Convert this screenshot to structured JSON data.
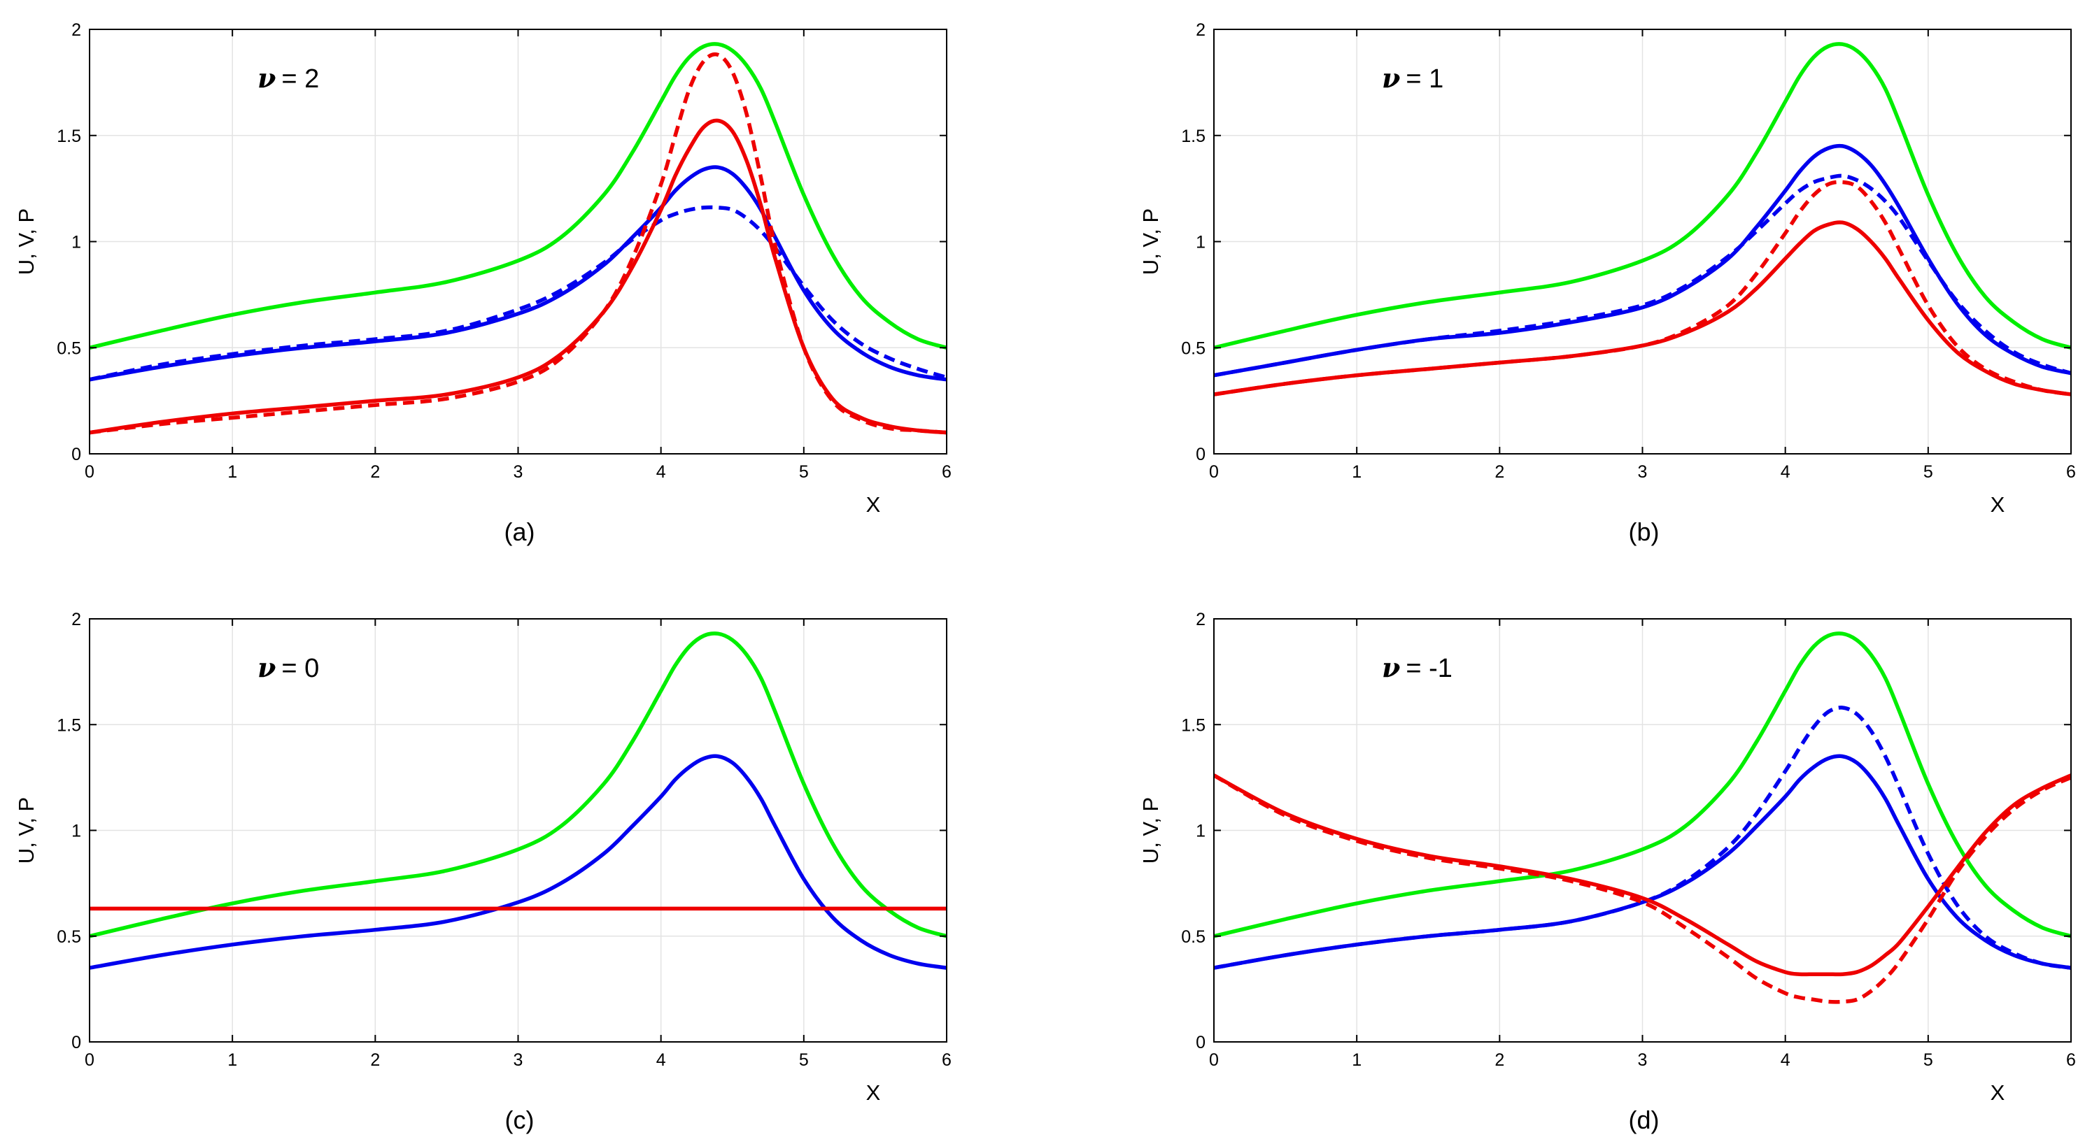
{
  "chart_data": [
    {
      "type": "line",
      "id": "a",
      "caption": "(a)",
      "annotation_symbol": "ν",
      "annotation_value": "= 2",
      "xlabel": "X",
      "ylabel": "U, V, P",
      "xlim": [
        0,
        6
      ],
      "ylim": [
        0,
        2
      ],
      "xticks": [
        "0",
        "1",
        "2",
        "3",
        "4",
        "5",
        "6"
      ],
      "yticks": [
        "0",
        "0.5",
        "1",
        "1.5",
        "2"
      ],
      "grid": true,
      "x": [
        0,
        0.5,
        1,
        1.5,
        2,
        2.5,
        3,
        3.3,
        3.6,
        3.8,
        4,
        4.1,
        4.2,
        4.3,
        4.4,
        4.5,
        4.6,
        4.7,
        4.8,
        5,
        5.2,
        5.4,
        5.6,
        5.8,
        6
      ],
      "series": [
        {
          "name": "green solid",
          "color": "#00ee00",
          "dash": false,
          "values": [
            0.5,
            0.58,
            0.655,
            0.715,
            0.76,
            0.81,
            0.91,
            1.02,
            1.22,
            1.42,
            1.66,
            1.78,
            1.87,
            1.92,
            1.93,
            1.9,
            1.83,
            1.72,
            1.56,
            1.22,
            0.94,
            0.74,
            0.62,
            0.54,
            0.5
          ]
        },
        {
          "name": "blue solid",
          "color": "#0000ee",
          "dash": false,
          "values": [
            0.35,
            0.41,
            0.46,
            0.5,
            0.53,
            0.57,
            0.66,
            0.75,
            0.89,
            1.02,
            1.16,
            1.24,
            1.3,
            1.34,
            1.35,
            1.32,
            1.25,
            1.15,
            1.02,
            0.77,
            0.59,
            0.48,
            0.41,
            0.37,
            0.35
          ]
        },
        {
          "name": "blue dashed",
          "color": "#0000ee",
          "dash": true,
          "values": [
            0.35,
            0.42,
            0.47,
            0.51,
            0.54,
            0.58,
            0.68,
            0.77,
            0.9,
            1.01,
            1.1,
            1.13,
            1.15,
            1.16,
            1.16,
            1.15,
            1.11,
            1.05,
            0.97,
            0.79,
            0.63,
            0.52,
            0.45,
            0.4,
            0.36
          ]
        },
        {
          "name": "red solid",
          "color": "#ee0000",
          "dash": false,
          "values": [
            0.1,
            0.15,
            0.19,
            0.22,
            0.25,
            0.28,
            0.36,
            0.47,
            0.67,
            0.88,
            1.15,
            1.31,
            1.44,
            1.54,
            1.57,
            1.52,
            1.38,
            1.17,
            0.92,
            0.5,
            0.26,
            0.17,
            0.13,
            0.11,
            0.1
          ]
        },
        {
          "name": "red dashed",
          "color": "#ee0000",
          "dash": true,
          "values": [
            0.1,
            0.14,
            0.17,
            0.2,
            0.23,
            0.26,
            0.34,
            0.45,
            0.67,
            0.92,
            1.27,
            1.5,
            1.72,
            1.85,
            1.88,
            1.8,
            1.6,
            1.3,
            0.98,
            0.5,
            0.25,
            0.16,
            0.12,
            0.11,
            0.1
          ]
        }
      ]
    },
    {
      "type": "line",
      "id": "b",
      "caption": "(b)",
      "annotation_symbol": "ν",
      "annotation_value": "= 1",
      "xlabel": "X",
      "ylabel": "U, V, P",
      "xlim": [
        0,
        6
      ],
      "ylim": [
        0,
        2
      ],
      "xticks": [
        "0",
        "1",
        "2",
        "3",
        "4",
        "5",
        "6"
      ],
      "yticks": [
        "0",
        "0.5",
        "1",
        "1.5",
        "2"
      ],
      "grid": true,
      "x": [
        0,
        0.5,
        1,
        1.5,
        2,
        2.5,
        3,
        3.3,
        3.6,
        3.8,
        4,
        4.1,
        4.2,
        4.3,
        4.4,
        4.5,
        4.6,
        4.7,
        4.8,
        5,
        5.2,
        5.4,
        5.6,
        5.8,
        6
      ],
      "series": [
        {
          "name": "green solid",
          "color": "#00ee00",
          "dash": false,
          "values": [
            0.5,
            0.58,
            0.655,
            0.715,
            0.76,
            0.81,
            0.91,
            1.02,
            1.22,
            1.42,
            1.66,
            1.78,
            1.87,
            1.92,
            1.93,
            1.9,
            1.83,
            1.72,
            1.56,
            1.22,
            0.94,
            0.74,
            0.62,
            0.54,
            0.5
          ]
        },
        {
          "name": "blue solid",
          "color": "#0000ee",
          "dash": false,
          "values": [
            0.37,
            0.43,
            0.49,
            0.54,
            0.57,
            0.62,
            0.69,
            0.78,
            0.92,
            1.07,
            1.24,
            1.33,
            1.4,
            1.44,
            1.45,
            1.42,
            1.36,
            1.27,
            1.16,
            0.92,
            0.71,
            0.56,
            0.47,
            0.41,
            0.38
          ]
        },
        {
          "name": "blue dashed",
          "color": "#0000ee",
          "dash": true,
          "values": [
            0.37,
            0.43,
            0.49,
            0.54,
            0.58,
            0.63,
            0.7,
            0.79,
            0.93,
            1.05,
            1.18,
            1.24,
            1.28,
            1.3,
            1.31,
            1.29,
            1.25,
            1.19,
            1.11,
            0.91,
            0.72,
            0.58,
            0.48,
            0.42,
            0.38
          ]
        },
        {
          "name": "red solid",
          "color": "#ee0000",
          "dash": false,
          "values": [
            0.28,
            0.33,
            0.37,
            0.4,
            0.43,
            0.46,
            0.51,
            0.57,
            0.67,
            0.78,
            0.92,
            0.99,
            1.05,
            1.08,
            1.09,
            1.06,
            1.0,
            0.92,
            0.82,
            0.63,
            0.48,
            0.39,
            0.33,
            0.3,
            0.28
          ]
        },
        {
          "name": "red dashed",
          "color": "#ee0000",
          "dash": true,
          "values": [
            0.28,
            0.33,
            0.37,
            0.4,
            0.43,
            0.46,
            0.51,
            0.58,
            0.7,
            0.85,
            1.04,
            1.14,
            1.22,
            1.27,
            1.28,
            1.26,
            1.19,
            1.09,
            0.96,
            0.7,
            0.51,
            0.4,
            0.34,
            0.3,
            0.28
          ]
        }
      ]
    },
    {
      "type": "line",
      "id": "c",
      "caption": "(c)",
      "annotation_symbol": "ν",
      "annotation_value": "= 0",
      "xlabel": "X",
      "ylabel": "U, V, P",
      "xlim": [
        0,
        6
      ],
      "ylim": [
        0,
        2
      ],
      "xticks": [
        "0",
        "1",
        "2",
        "3",
        "4",
        "5",
        "6"
      ],
      "yticks": [
        "0",
        "0.5",
        "1",
        "1.5",
        "2"
      ],
      "grid": true,
      "x": [
        0,
        0.5,
        1,
        1.5,
        2,
        2.5,
        3,
        3.3,
        3.6,
        3.8,
        4,
        4.1,
        4.2,
        4.3,
        4.4,
        4.5,
        4.6,
        4.7,
        4.8,
        5,
        5.2,
        5.4,
        5.6,
        5.8,
        6
      ],
      "series": [
        {
          "name": "green solid",
          "color": "#00ee00",
          "dash": false,
          "values": [
            0.5,
            0.58,
            0.655,
            0.715,
            0.76,
            0.81,
            0.91,
            1.02,
            1.22,
            1.42,
            1.66,
            1.78,
            1.87,
            1.92,
            1.93,
            1.9,
            1.83,
            1.72,
            1.56,
            1.22,
            0.94,
            0.74,
            0.62,
            0.54,
            0.5
          ]
        },
        {
          "name": "blue solid",
          "color": "#0000ee",
          "dash": false,
          "values": [
            0.35,
            0.41,
            0.46,
            0.5,
            0.53,
            0.57,
            0.66,
            0.75,
            0.89,
            1.02,
            1.16,
            1.24,
            1.3,
            1.34,
            1.35,
            1.32,
            1.25,
            1.15,
            1.02,
            0.77,
            0.59,
            0.48,
            0.41,
            0.37,
            0.35
          ]
        },
        {
          "name": "red solid",
          "color": "#ee0000",
          "dash": false,
          "values": [
            0.63,
            0.63,
            0.63,
            0.63,
            0.63,
            0.63,
            0.63,
            0.63,
            0.63,
            0.63,
            0.63,
            0.63,
            0.63,
            0.63,
            0.63,
            0.63,
            0.63,
            0.63,
            0.63,
            0.63,
            0.63,
            0.63,
            0.63,
            0.63,
            0.63
          ]
        }
      ]
    },
    {
      "type": "line",
      "id": "d",
      "caption": "(d)",
      "annotation_symbol": "ν",
      "annotation_value": "= -1",
      "xlabel": "X",
      "ylabel": "U, V, P",
      "xlim": [
        0,
        6
      ],
      "ylim": [
        0,
        2
      ],
      "xticks": [
        "0",
        "1",
        "2",
        "3",
        "4",
        "5",
        "6"
      ],
      "yticks": [
        "0",
        "0.5",
        "1",
        "1.5",
        "2"
      ],
      "grid": true,
      "x": [
        0,
        0.5,
        1,
        1.5,
        2,
        2.5,
        3,
        3.3,
        3.6,
        3.8,
        4,
        4.1,
        4.2,
        4.3,
        4.4,
        4.5,
        4.6,
        4.7,
        4.8,
        5,
        5.2,
        5.4,
        5.6,
        5.8,
        6
      ],
      "series": [
        {
          "name": "green solid",
          "color": "#00ee00",
          "dash": false,
          "values": [
            0.5,
            0.58,
            0.655,
            0.715,
            0.76,
            0.81,
            0.91,
            1.02,
            1.22,
            1.42,
            1.66,
            1.78,
            1.87,
            1.92,
            1.93,
            1.9,
            1.83,
            1.72,
            1.56,
            1.22,
            0.94,
            0.74,
            0.62,
            0.54,
            0.5
          ]
        },
        {
          "name": "blue solid",
          "color": "#0000ee",
          "dash": false,
          "values": [
            0.35,
            0.41,
            0.46,
            0.5,
            0.53,
            0.57,
            0.66,
            0.75,
            0.89,
            1.02,
            1.16,
            1.24,
            1.3,
            1.34,
            1.35,
            1.32,
            1.25,
            1.15,
            1.02,
            0.77,
            0.59,
            0.48,
            0.41,
            0.37,
            0.35
          ]
        },
        {
          "name": "blue dashed",
          "color": "#0000ee",
          "dash": true,
          "values": [
            0.35,
            0.41,
            0.46,
            0.5,
            0.53,
            0.57,
            0.66,
            0.76,
            0.92,
            1.08,
            1.28,
            1.39,
            1.49,
            1.56,
            1.58,
            1.55,
            1.47,
            1.35,
            1.2,
            0.89,
            0.65,
            0.5,
            0.42,
            0.37,
            0.35
          ]
        },
        {
          "name": "red solid",
          "color": "#ee0000",
          "dash": false,
          "values": [
            1.26,
            1.08,
            0.96,
            0.88,
            0.83,
            0.77,
            0.68,
            0.58,
            0.46,
            0.38,
            0.33,
            0.32,
            0.32,
            0.32,
            0.32,
            0.33,
            0.36,
            0.41,
            0.47,
            0.64,
            0.82,
            0.99,
            1.12,
            1.2,
            1.26
          ]
        },
        {
          "name": "red dashed",
          "color": "#ee0000",
          "dash": true,
          "values": [
            1.26,
            1.07,
            0.95,
            0.87,
            0.82,
            0.76,
            0.66,
            0.54,
            0.4,
            0.3,
            0.23,
            0.21,
            0.2,
            0.19,
            0.19,
            0.2,
            0.24,
            0.3,
            0.38,
            0.58,
            0.8,
            0.97,
            1.1,
            1.19,
            1.25
          ]
        }
      ]
    }
  ]
}
